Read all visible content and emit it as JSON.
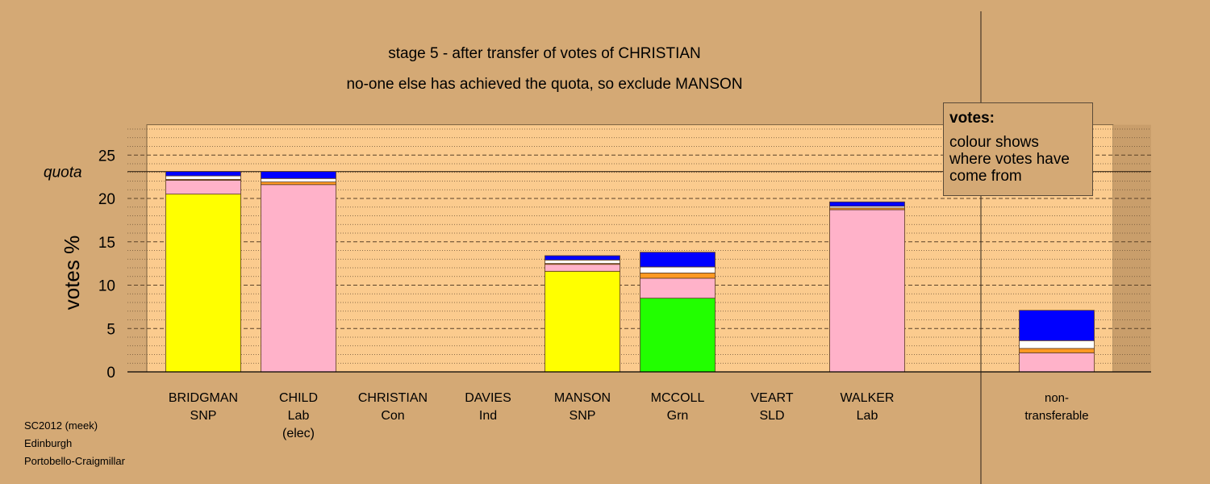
{
  "title_line1": "stage 5 - after transfer of votes of CHRISTIAN",
  "title_line2": "no-one else has achieved the quota, so exclude MANSON",
  "legend": {
    "title": "votes:",
    "text": "colour shows where votes have come from"
  },
  "source": [
    "SC2012 (meek)",
    "Edinburgh",
    "Portobello-Craigmillar"
  ],
  "colors": {
    "background": "#d4a975",
    "plot_area": "#fbcb8e",
    "snp": "#ffff00",
    "lab": "#ffb2c9",
    "grn": "#22ff00",
    "con": "#0000ff",
    "ind": "#ffffff",
    "sld": "#ff9922"
  },
  "chart_data": {
    "type": "bar",
    "stacked": true,
    "ylabel": "votes %",
    "yticks": [
      0,
      5,
      10,
      15,
      20,
      25
    ],
    "ylim": [
      0,
      28.5
    ],
    "quota": 23.1,
    "quota_label": "quota",
    "grid": true,
    "categories": [
      {
        "name": "BRIDGMAN",
        "party": "SNP"
      },
      {
        "name": "CHILD",
        "party": "Lab",
        "note": "(elec)"
      },
      {
        "name": "CHRISTIAN",
        "party": "Con"
      },
      {
        "name": "DAVIES",
        "party": "Ind"
      },
      {
        "name": "MANSON",
        "party": "SNP"
      },
      {
        "name": "MCCOLL",
        "party": "Grn"
      },
      {
        "name": "VEART",
        "party": "SLD"
      },
      {
        "name": "WALKER",
        "party": "Lab"
      },
      {
        "name": "non-",
        "party": "transferable"
      }
    ],
    "series": [
      {
        "name": "SNP",
        "color": "#ffff00",
        "values": [
          20.5,
          0,
          0,
          0,
          11.6,
          0,
          0,
          0,
          0
        ]
      },
      {
        "name": "Grn",
        "color": "#22ff00",
        "values": [
          0,
          0,
          0,
          0,
          0,
          8.5,
          0,
          0,
          0
        ]
      },
      {
        "name": "Lab",
        "color": "#ffb2c9",
        "values": [
          1.6,
          21.6,
          0,
          0,
          0.8,
          2.3,
          0,
          18.7,
          2.2
        ]
      },
      {
        "name": "SLD",
        "color": "#ff9922",
        "values": [
          0.1,
          0.3,
          0,
          0,
          0.1,
          0.6,
          0,
          0.2,
          0.5
        ]
      },
      {
        "name": "Ind",
        "color": "#ffffff",
        "values": [
          0.4,
          0.4,
          0,
          0,
          0.4,
          0.7,
          0,
          0.2,
          0.9
        ]
      },
      {
        "name": "Con",
        "color": "#0000ff",
        "values": [
          0.5,
          0.8,
          0,
          0,
          0.5,
          1.7,
          0,
          0.5,
          3.5
        ]
      }
    ]
  }
}
